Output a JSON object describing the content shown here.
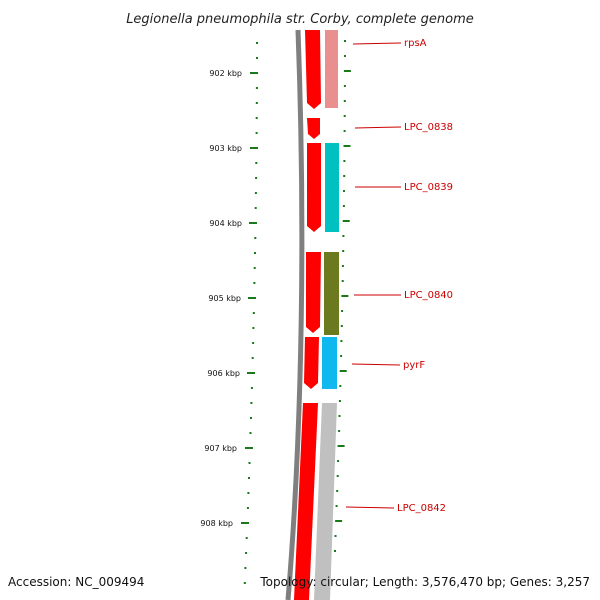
{
  "title": "Legionella pneumophila str. Corby, complete genome",
  "accession_text": "Accession: NC_009494",
  "topology_text": "Topology: circular; Length: 3,576,470 bp; Genes: 3,257",
  "colors": {
    "backbone": "#7f7f7f",
    "cds_strand": "#ff0000",
    "ruler": "#1a7a1a",
    "gene_label": "#cc0000",
    "rpsA": "#e98f8f",
    "LPC_0839": "#00c0c0",
    "LPC_0840": "#6b7a1e",
    "pyrF": "#10b8f0",
    "LPC_0842": "#c0c0c0"
  },
  "ruler_ticks": [
    "902 kbp",
    "903 kbp",
    "904 kbp",
    "905 kbp",
    "906 kbp",
    "907 kbp",
    "908 kbp"
  ],
  "genes": [
    {
      "label": "rpsA",
      "color_key": "rpsA"
    },
    {
      "label": "LPC_0838",
      "color_key": "cds_strand"
    },
    {
      "label": "LPC_0839",
      "color_key": "LPC_0839"
    },
    {
      "label": "LPC_0840",
      "color_key": "LPC_0840"
    },
    {
      "label": "pyrF",
      "color_key": "pyrF"
    },
    {
      "label": "LPC_0842",
      "color_key": "LPC_0842"
    }
  ]
}
